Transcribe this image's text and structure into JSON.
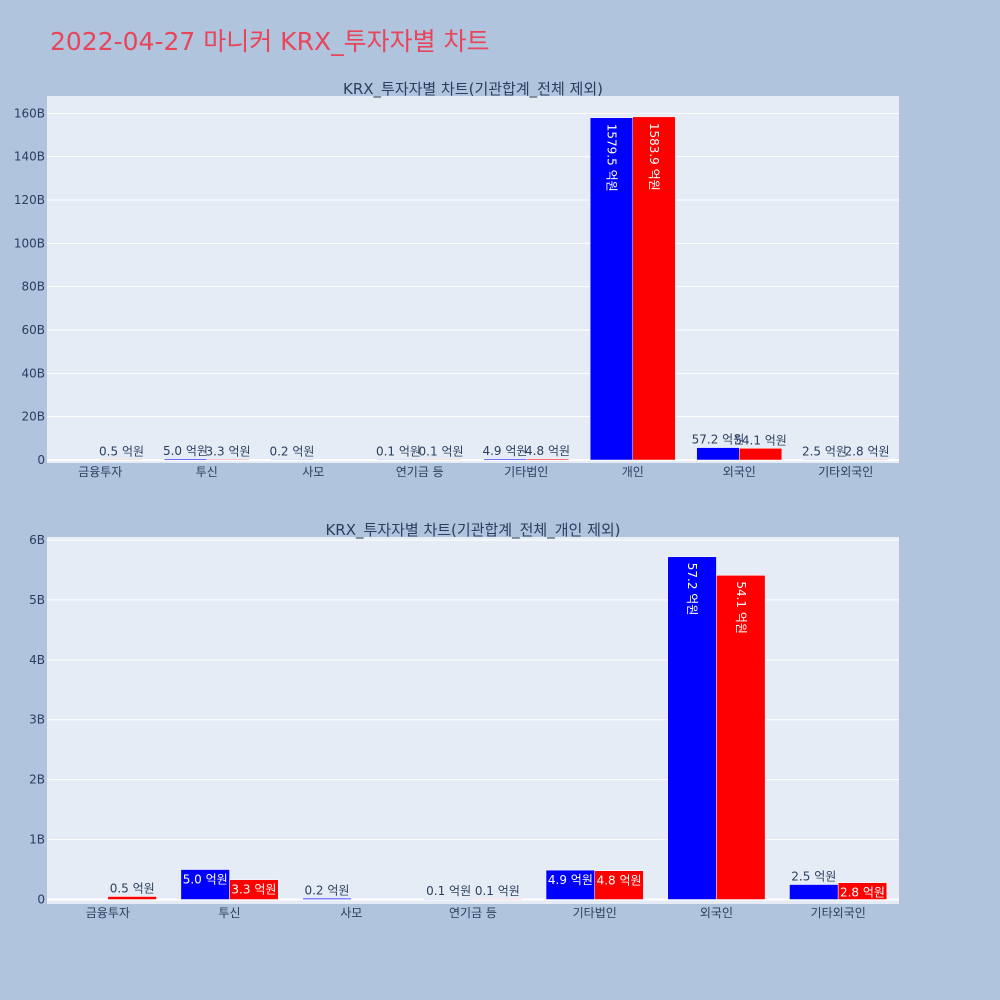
{
  "title": "2022-04-27 마니커 KRX_투자자별 차트",
  "colors": {
    "buy": "#0000ff",
    "sell": "#ff0000",
    "plot_bg": "#e5ecf6",
    "page_bg": "#b0c4de",
    "title": "#e8455b"
  },
  "chart_data": [
    {
      "type": "bar",
      "title": "KRX_투자자별 차트(기관합계_전체 제외)",
      "categories": [
        "금융투자",
        "투신",
        "사모",
        "연기금 등",
        "기타법인",
        "개인",
        "외국인",
        "기타외국인"
      ],
      "series": [
        {
          "values": [
            0,
            500000000,
            20000000,
            10000000,
            490000000,
            157950000000,
            5720000000,
            250000000
          ]
        },
        {
          "values": [
            50000000,
            330000000,
            0,
            10000000,
            480000000,
            158390000000,
            5410000000,
            280000000
          ]
        }
      ],
      "data_labels": [
        [
          "",
          "5.0 억원",
          "0.2 억원",
          "0.1 억원",
          "4.9 억원",
          "1579.5 억원",
          "57.2 억원",
          "2.5 억원"
        ],
        [
          "0.5 억원",
          "3.3 억원",
          "",
          "0.1 억원",
          "4.8 억원",
          "1583.9 억원",
          "54.1 억원",
          "2.8 억원"
        ]
      ],
      "yticks": [
        "0",
        "20B",
        "40B",
        "60B",
        "80B",
        "100B",
        "120B",
        "140B",
        "160B"
      ],
      "ylim": [
        0,
        168000000000
      ],
      "grid": true,
      "legend": "none"
    },
    {
      "type": "bar",
      "title": "KRX_투자자별 차트(기관합계_전체_개인 제외)",
      "categories": [
        "금융투자",
        "투신",
        "사모",
        "연기금 등",
        "기타법인",
        "외국인",
        "기타외국인"
      ],
      "series": [
        {
          "values": [
            0,
            500000000,
            20000000,
            10000000,
            490000000,
            5720000000,
            250000000
          ]
        },
        {
          "values": [
            50000000,
            330000000,
            0,
            10000000,
            480000000,
            5410000000,
            280000000
          ]
        }
      ],
      "data_labels": [
        [
          "",
          "5.0 억원",
          "0.2 억원",
          "0.1 억원",
          "4.9 억원",
          "57.2 억원",
          "2.5 억원"
        ],
        [
          "0.5 억원",
          "3.3 억원",
          "",
          "0.1 억원",
          "4.8 억원",
          "54.1 억원",
          "2.8 억원"
        ]
      ],
      "yticks": [
        "0",
        "1B",
        "2B",
        "3B",
        "4B",
        "5B",
        "6B"
      ],
      "ylim": [
        0,
        6050000000
      ],
      "grid": true,
      "legend": "none"
    }
  ]
}
